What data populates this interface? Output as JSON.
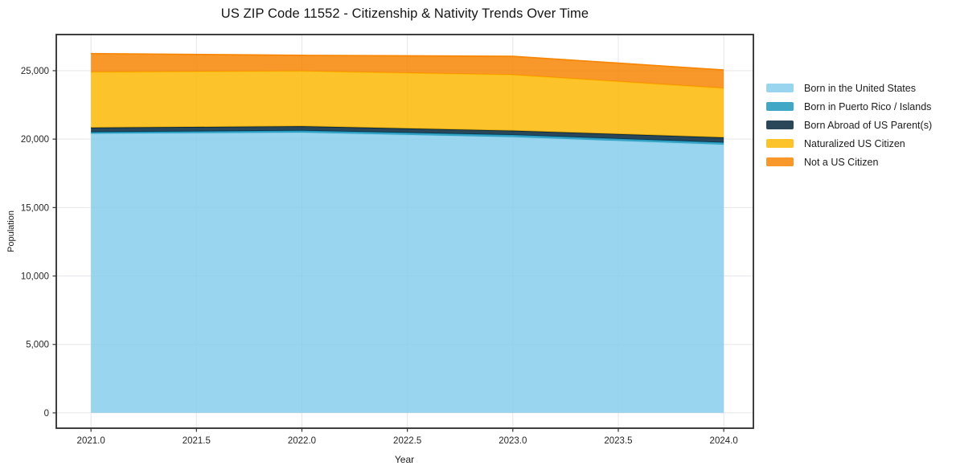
{
  "chart_data": {
    "type": "area",
    "stacked": true,
    "title": "US ZIP Code 11552 - Citizenship & Nativity Trends Over Time",
    "xlabel": "Year",
    "ylabel": "Population",
    "x": [
      2021,
      2022,
      2023,
      2024
    ],
    "series": [
      {
        "name": "Born in the United States",
        "color": "#87CEEB",
        "values": [
          20400,
          20480,
          20150,
          19600
        ]
      },
      {
        "name": "Born in Puerto Rico / Islands",
        "color": "#1E98BD",
        "values": [
          110,
          140,
          150,
          150
        ]
      },
      {
        "name": "Born Abroad of US Parent(s)",
        "color": "#04273C",
        "values": [
          330,
          320,
          320,
          370
        ]
      },
      {
        "name": "Naturalized US Citizen",
        "color": "#FCB905",
        "values": [
          4060,
          4030,
          4080,
          3600
        ]
      },
      {
        "name": "Not a US Citizen",
        "color": "#F78605",
        "values": [
          1350,
          1150,
          1350,
          1330
        ]
      }
    ],
    "x_ticks": [
      {
        "v": 2021.0,
        "label": "2021.0"
      },
      {
        "v": 2021.5,
        "label": "2021.5"
      },
      {
        "v": 2022.0,
        "label": "2022.0"
      },
      {
        "v": 2022.5,
        "label": "2022.5"
      },
      {
        "v": 2023.0,
        "label": "2023.0"
      },
      {
        "v": 2023.5,
        "label": "2023.5"
      },
      {
        "v": 2024.0,
        "label": "2024.0"
      }
    ],
    "y_ticks": [
      {
        "v": 0,
        "label": "0"
      },
      {
        "v": 5000,
        "label": "5,000"
      },
      {
        "v": 10000,
        "label": "10,000"
      },
      {
        "v": 15000,
        "label": "15,000"
      },
      {
        "v": 20000,
        "label": "20,000"
      },
      {
        "v": 25000,
        "label": "25,000"
      }
    ],
    "x_range": [
      2020.8355,
      2024.1405
    ],
    "y_range": [
      -1120,
      27640
    ],
    "grid": true,
    "grid_color": "#E5E5EB",
    "legend_position": "outside-right",
    "fill_opacity": 0.85,
    "spine_color": "#2A2A2A",
    "tick_color": "#333333"
  }
}
